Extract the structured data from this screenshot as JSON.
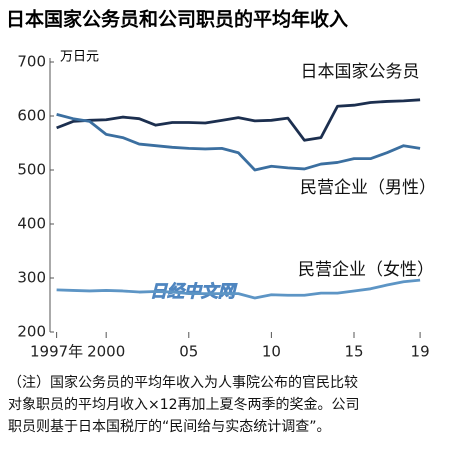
{
  "chart_data": {
    "type": "line",
    "title": "日本国家公务员和公司职员的平均年收入",
    "y_label": "万日元",
    "watermark": "日经中文网",
    "x": [
      1997,
      1998,
      1999,
      2000,
      2001,
      2002,
      2003,
      2004,
      2005,
      2006,
      2007,
      2008,
      2009,
      2010,
      2011,
      2012,
      2013,
      2014,
      2015,
      2016,
      2017,
      2018,
      2019
    ],
    "series": [
      {
        "name": "日本国家公务员",
        "color": "#1c2f4f",
        "values": [
          578,
          590,
          592,
          593,
          598,
          595,
          583,
          588,
          588,
          587,
          592,
          597,
          591,
          592,
          596,
          555,
          560,
          618,
          620,
          625,
          627,
          628,
          630
        ]
      },
      {
        "name": "民营企业（男性）",
        "color": "#3b6fa0",
        "values": [
          603,
          595,
          590,
          566,
          560,
          548,
          545,
          542,
          540,
          539,
          540,
          532,
          500,
          507,
          504,
          502,
          511,
          514,
          521,
          521,
          532,
          545,
          540
        ]
      },
      {
        "name": "民营企业（女性）",
        "color": "#5d95c5",
        "values": [
          278,
          277,
          276,
          277,
          276,
          274,
          275,
          274,
          271,
          271,
          271,
          271,
          263,
          269,
          268,
          268,
          272,
          272,
          276,
          280,
          287,
          293,
          296
        ]
      }
    ],
    "xlim": [
      1996.6,
      2019.6
    ],
    "xticks": [
      {
        "value": 1997,
        "label": "1997年"
      },
      2000,
      {
        "value": 2005,
        "label": "05"
      },
      {
        "value": 2010,
        "label": "10"
      },
      {
        "value": 2015,
        "label": "15"
      },
      {
        "value": 2019,
        "label": "19"
      }
    ],
    "ylim": [
      200,
      700
    ],
    "yticks": [
      200,
      300,
      400,
      500,
      600,
      700
    ],
    "grid": false,
    "notes": [
      "（注）国家公务员的平均年收入为人事院公布的官民比较",
      "对象职员的平均月收入×12再加上夏冬两季的奖金。公司",
      "职员则基于日本国税厅的“民间给与实态统计调查”。"
    ]
  }
}
